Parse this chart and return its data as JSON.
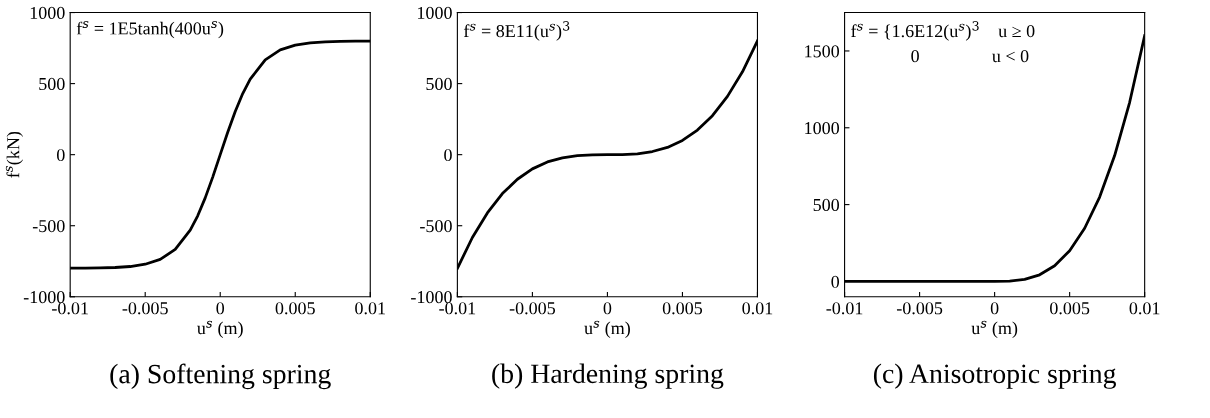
{
  "chart_data": [
    {
      "type": "line",
      "title": "(a) Softening spring",
      "xlabel": "u$^{s}$ (m)",
      "ylabel": "f$^{s}$(kN)",
      "annotations": [
        "f$^{s}$ = 1E5tanh(400u$^{s}$)"
      ],
      "x": [
        -0.01,
        -0.009,
        -0.008,
        -0.007,
        -0.006,
        -0.005,
        -0.004,
        -0.003,
        -0.002,
        -0.0015,
        -0.001,
        -0.0005,
        0,
        0.0005,
        0.001,
        0.0015,
        0.002,
        0.003,
        0.004,
        0.005,
        0.006,
        0.007,
        0.008,
        0.009,
        0.01
      ],
      "series": [
        {
          "color": "#000000",
          "values": [
            -799,
            -799,
            -797,
            -794,
            -787,
            -771,
            -737,
            -667,
            -531,
            -430,
            -304,
            -158,
            0,
            158,
            304,
            430,
            531,
            667,
            737,
            771,
            787,
            794,
            797,
            799,
            799
          ]
        }
      ],
      "xlim": [
        -0.01,
        0.01
      ],
      "xticks": [
        -0.01,
        -0.005,
        0,
        0.005,
        0.01
      ],
      "ylim": [
        -1000,
        1000
      ],
      "yticks": [
        -1000,
        -500,
        0,
        500,
        1000
      ],
      "line_style": "solid",
      "grid": false,
      "legend": false
    },
    {
      "type": "line",
      "title": "(b) Hardening spring",
      "xlabel": "u$^{s}$ (m)",
      "annotations": [
        "f$^{s}$ = 8E11(u$^{s}$)$^{3}$"
      ],
      "x": [
        -0.01,
        -0.009,
        -0.008,
        -0.007,
        -0.006,
        -0.005,
        -0.004,
        -0.003,
        -0.002,
        -0.001,
        0,
        0.001,
        0.002,
        0.003,
        0.004,
        0.005,
        0.006,
        0.007,
        0.008,
        0.009,
        0.01
      ],
      "series": [
        {
          "color": "#000000",
          "values": [
            -800,
            -583,
            -410,
            -274,
            -173,
            -100,
            -51,
            -22,
            -6,
            -1,
            0,
            1,
            6,
            22,
            51,
            100,
            173,
            274,
            410,
            583,
            800
          ]
        }
      ],
      "xlim": [
        -0.01,
        0.01
      ],
      "xticks": [
        -0.01,
        -0.005,
        0,
        0.005,
        0.01
      ],
      "ylim": [
        -1000,
        1000
      ],
      "yticks": [
        -1000,
        -500,
        0,
        500,
        1000
      ],
      "line_style": "solid",
      "grid": false,
      "legend": false
    },
    {
      "type": "line",
      "title": "(c) Anisotropic spring",
      "xlabel": "u$^{s}$ (m)",
      "annotations": [
        "f$^{s}$ = {1.6E12(u$^{s}$)$^{3}$    u ≥ 0",
        "0                u < 0"
      ],
      "x": [
        -0.01,
        -0.005,
        0,
        0.001,
        0.002,
        0.003,
        0.004,
        0.005,
        0.006,
        0.007,
        0.008,
        0.009,
        0.01
      ],
      "series": [
        {
          "color": "#000000",
          "values": [
            0,
            0,
            0,
            2,
            13,
            43,
            102,
            200,
            346,
            549,
            819,
            1166,
            1600
          ]
        }
      ],
      "xlim": [
        -0.01,
        0.01
      ],
      "xticks": [
        -0.01,
        -0.005,
        0,
        0.005,
        0.01
      ],
      "ylim": [
        -100,
        1750
      ],
      "yticks": [
        0,
        500,
        1000,
        1500
      ],
      "line_style": "solid",
      "grid": false,
      "legend": false
    }
  ]
}
